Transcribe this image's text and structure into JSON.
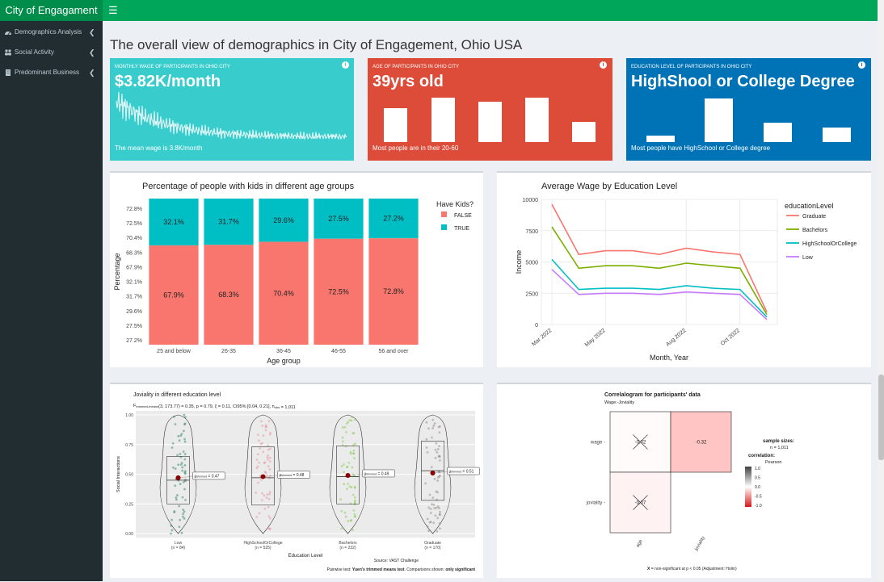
{
  "header": {
    "brand": "City of Engagament",
    "menu_icon": "hamburger-icon"
  },
  "sidebar": {
    "items": [
      {
        "label": "Demographics Analysis",
        "icon": "dashboard-icon"
      },
      {
        "label": "Social Activity",
        "icon": "users-icon"
      },
      {
        "label": "Predominant Business",
        "icon": "building-icon"
      }
    ]
  },
  "page": {
    "title": "The overall view of demographics in City of Engagement, Ohio USA"
  },
  "colors": {
    "wage_box": "#39cccc",
    "age_box": "#dd4b39",
    "edu_box": "#0073b7",
    "header": "#00a65a",
    "sidebar": "#222d32"
  },
  "boxes": {
    "wage": {
      "caption": "MONTHLY WAGE OF PARTICIPANTS IN OHIO CITY",
      "value": "$3.82K/month",
      "desc": "The mean wage is 3.8K/month"
    },
    "age": {
      "caption": "AGE OF PARTICIPANTS IN OHIO CITY",
      "value": "39yrs old",
      "desc": "Most people are in their 20-60"
    },
    "edu": {
      "caption": "EDUCATION LEVEL OF PARTICIPANTS IN OHIO CITY",
      "value": "HighShool or College Degree",
      "desc": "Most people have HighSchool or College degree"
    }
  },
  "chart_data": [
    {
      "type": "bar",
      "title": "Percentage of people with kids in different age groups",
      "xlabel": "Age group",
      "ylabel": "Percentage",
      "categories": [
        "25 and below",
        "26-35",
        "36-45",
        "46-55",
        "56 and over"
      ],
      "series": [
        {
          "name": "FALSE",
          "values": [
            67.9,
            68.3,
            70.4,
            72.5,
            72.8
          ],
          "labels": [
            "67.9%",
            "68.3%",
            "70.4%",
            "72.5%",
            "72.8%"
          ],
          "color": "#f8766d"
        },
        {
          "name": "TRUE",
          "values": [
            32.1,
            31.7,
            29.6,
            27.5,
            27.2
          ],
          "labels": [
            "32.1%",
            "31.7%",
            "29.6%",
            "27.5%",
            "27.2%"
          ],
          "color": "#00bfc4"
        }
      ],
      "yticks": [
        "72.8%",
        "72.5%",
        "70.4%",
        "68.3%",
        "67.9%",
        "32.1%",
        "31.7%",
        "29.6%",
        "27.5%",
        "27.2%"
      ],
      "legend_title": "Have Kids?",
      "legend": "right"
    },
    {
      "type": "line",
      "title": "Average Wage by Education Level",
      "xlabel": "Month, Year",
      "ylabel": "Income",
      "x": [
        "2022-03",
        "2022-04",
        "2022-05",
        "2022-06",
        "2022-07",
        "2022-08",
        "2022-09",
        "2022-10",
        "2022-11"
      ],
      "xticks": [
        "Mar 2022",
        "May 2022",
        "Aug 2022",
        "Oct 2022"
      ],
      "xtick_months": [
        "2022-03",
        "2022-05",
        "2022-08",
        "2022-10"
      ],
      "yticks": [
        "0",
        "2500",
        "5000",
        "7500",
        "10000"
      ],
      "ylim": [
        0,
        10000
      ],
      "legend_title": "educationLevel",
      "legend": "right",
      "series": [
        {
          "name": "Graduate",
          "color": "#f8766d",
          "values": [
            9600,
            5600,
            5900,
            5900,
            5600,
            6100,
            5800,
            5600,
            1000
          ]
        },
        {
          "name": "Bachelors",
          "color": "#7cae00",
          "values": [
            7800,
            4500,
            4700,
            4700,
            4500,
            4900,
            4700,
            4500,
            800
          ]
        },
        {
          "name": "HighSchoolOrCollege",
          "color": "#00bfc4",
          "values": [
            5200,
            2800,
            2900,
            2900,
            2800,
            3100,
            2900,
            2800,
            600
          ]
        },
        {
          "name": "Low",
          "color": "#c77cff",
          "values": [
            4400,
            2400,
            2500,
            2500,
            2400,
            2600,
            2500,
            2400,
            400
          ]
        }
      ]
    },
    {
      "type": "scatter",
      "title": "Joviality in different education level",
      "subtitle_prefix": "F",
      "subtitle_sub": "trimmed-means",
      "subtitle_rest": "(3, 173.77) = 0.35, p = 0.79, ξ = 0.11, CI95% [0.04, 0.21], n",
      "subtitle_sub2": "obs",
      "subtitle_end": " = 1,011",
      "xlabel": "Education Level",
      "ylabel": "Social Interactions",
      "yticks": [
        "0.00",
        "0.25",
        "0.50",
        "0.75",
        "1.00"
      ],
      "ylim": [
        0,
        1
      ],
      "groups": [
        {
          "name": "Low",
          "n": "(n = 84)",
          "mean": 0.47,
          "mean_label": "0.47",
          "q1": 0.25,
          "median": 0.45,
          "q3": 0.65,
          "color": "#1b7a5a"
        },
        {
          "name": "HighSchoolOrCollege",
          "n": "(n = 525)",
          "mean": 0.48,
          "mean_label": "0.48",
          "q1": 0.24,
          "median": 0.47,
          "q3": 0.73,
          "color": "#e7889c"
        },
        {
          "name": "Bachelors",
          "n": "(n = 232)",
          "mean": 0.49,
          "mean_label": "0.49",
          "q1": 0.25,
          "median": 0.48,
          "q3": 0.74,
          "color": "#7ec843"
        },
        {
          "name": "Graduate",
          "n": "(n = 170)",
          "mean": 0.51,
          "mean_label": "0.51",
          "q1": 0.28,
          "median": 0.53,
          "q3": 0.78,
          "color": "#8a7f7f"
        }
      ],
      "mean_prefix": "μ",
      "mean_sub": "trimmed",
      "source": "Source: VAST Challenge",
      "caption_pre": "Pairwise test: ",
      "caption_bold": "Yuen's trimmed means test",
      "caption_mid": ". Comparisons shown: ",
      "caption_bold2": "only significant"
    },
    {
      "type": "heatmap",
      "title": "Correlalogram for participants' data",
      "subtitle": "Wage:-Joviality",
      "rows": [
        "wage",
        "joviality"
      ],
      "cols": [
        "age",
        "joviality"
      ],
      "cells": [
        {
          "row": "wage",
          "col": "age",
          "value": -0.02,
          "label": "-0.02",
          "crossed": true
        },
        {
          "row": "wage",
          "col": "joviality",
          "value": -0.32,
          "label": "-0.32",
          "crossed": false
        },
        {
          "row": "joviality",
          "col": "age",
          "value": -0.07,
          "label": "-0.07",
          "crossed": true
        }
      ],
      "sample_sizes_title": "sample sizes:",
      "sample_n": "n = 1,011",
      "correlation_title": "correlation:",
      "correlation_method": "Pearson",
      "legend_ticks": [
        "1.0",
        "0.5",
        "0.0",
        "-0.5",
        "-1.0"
      ],
      "footnote_bold": "X",
      "footnote": " = non-significant at p < 0.05 (Adjustment: Holm)"
    }
  ]
}
